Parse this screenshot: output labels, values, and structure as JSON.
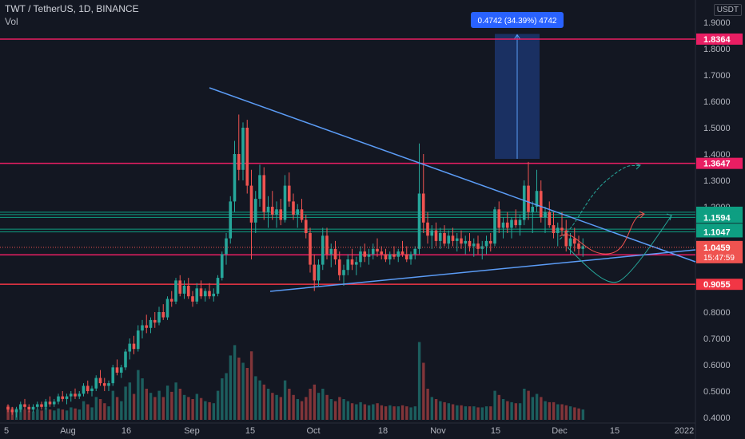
{
  "header": {
    "symbol_line": "TWT / TetherUS, 1D, BINANCE",
    "volume_label": "Vol",
    "currency": "USDT"
  },
  "measure_label": "0.4742 (34.39%) 4742",
  "colors": {
    "background": "#131722",
    "up": "#26a69a",
    "down": "#ef5350",
    "pink_level": "#e91e63",
    "red_level": "#f23645",
    "green_level": "#0e9f82",
    "trendline": "#5b9cf6",
    "measure_fill": "#1e3a78"
  },
  "chart_data": {
    "type": "candlestick",
    "y_ticks": [
      "0.4000",
      "0.5000",
      "0.6000",
      "0.7000",
      "0.8000",
      "0.9000",
      "1.0000",
      "1.1000",
      "1.2000",
      "1.3000",
      "1.4000",
      "1.5000",
      "1.6000",
      "1.7000",
      "1.8000",
      "1.9000"
    ],
    "x_ticks": [
      "5",
      "Aug",
      "16",
      "Sep",
      "15",
      "Oct",
      "18",
      "Nov",
      "15",
      "Dec",
      "15",
      "2022"
    ],
    "levels": [
      {
        "value": 1.8364,
        "label": "1.8364",
        "color": "#e91e63"
      },
      {
        "value": 1.3647,
        "label": "1.3647",
        "color": "#e91e63"
      },
      {
        "value": 1.179,
        "label": "1.1790",
        "color": "#0e9f82"
      },
      {
        "value": 1.17,
        "label": "1.1700",
        "color": "#0e9f82"
      },
      {
        "value": 1.1594,
        "label": "1.1594",
        "color": "#0e9f82"
      },
      {
        "value": 1.1146,
        "label": "1.1146",
        "color": "#0e9f82"
      },
      {
        "value": 1.1047,
        "label": "1.1047",
        "color": "#0e9f82"
      },
      {
        "value": 1.0175,
        "label": "1.0175",
        "color": "#e91e63"
      },
      {
        "value": 0.9055,
        "label": "0.9055",
        "color": "#f23645"
      }
    ],
    "last_price": {
      "value": 1.0459,
      "label": "1.0459",
      "countdown": "15:47:59"
    },
    "trendlines": [
      {
        "from": {
          "day": 66,
          "price": 1.65
        },
        "to": {
          "day": 210,
          "price": 1.01
        }
      },
      {
        "from": {
          "day": 86,
          "price": 0.875
        },
        "to": {
          "day": 210,
          "price": 1.04
        }
      }
    ],
    "measure": {
      "from_price": 1.3818,
      "to_price": 1.856,
      "start_day": 159,
      "end_day": 174
    },
    "candles": [
      [
        0.44,
        0.45,
        0.42,
        0.43,
        0.14
      ],
      [
        0.43,
        0.44,
        0.41,
        0.42,
        0.12
      ],
      [
        0.42,
        0.44,
        0.4,
        0.43,
        0.11
      ],
      [
        0.43,
        0.46,
        0.42,
        0.45,
        0.13
      ],
      [
        0.45,
        0.47,
        0.43,
        0.44,
        0.1
      ],
      [
        0.44,
        0.45,
        0.42,
        0.43,
        0.09
      ],
      [
        0.43,
        0.45,
        0.42,
        0.44,
        0.08
      ],
      [
        0.44,
        0.46,
        0.43,
        0.45,
        0.1
      ],
      [
        0.45,
        0.46,
        0.43,
        0.44,
        0.09
      ],
      [
        0.44,
        0.47,
        0.43,
        0.46,
        0.12
      ],
      [
        0.46,
        0.48,
        0.44,
        0.45,
        0.1
      ],
      [
        0.45,
        0.47,
        0.44,
        0.46,
        0.09
      ],
      [
        0.46,
        0.49,
        0.45,
        0.48,
        0.11
      ],
      [
        0.48,
        0.5,
        0.46,
        0.47,
        0.1
      ],
      [
        0.47,
        0.49,
        0.45,
        0.48,
        0.09
      ],
      [
        0.48,
        0.5,
        0.46,
        0.49,
        0.12
      ],
      [
        0.49,
        0.51,
        0.47,
        0.48,
        0.11
      ],
      [
        0.48,
        0.5,
        0.47,
        0.49,
        0.1
      ],
      [
        0.49,
        0.53,
        0.48,
        0.52,
        0.18
      ],
      [
        0.52,
        0.54,
        0.49,
        0.5,
        0.15
      ],
      [
        0.5,
        0.52,
        0.48,
        0.51,
        0.12
      ],
      [
        0.51,
        0.56,
        0.5,
        0.55,
        0.22
      ],
      [
        0.55,
        0.58,
        0.52,
        0.53,
        0.2
      ],
      [
        0.53,
        0.55,
        0.5,
        0.52,
        0.16
      ],
      [
        0.52,
        0.54,
        0.5,
        0.53,
        0.13
      ],
      [
        0.53,
        0.6,
        0.52,
        0.59,
        0.28
      ],
      [
        0.59,
        0.62,
        0.56,
        0.57,
        0.22
      ],
      [
        0.57,
        0.6,
        0.55,
        0.59,
        0.18
      ],
      [
        0.59,
        0.66,
        0.58,
        0.65,
        0.32
      ],
      [
        0.65,
        0.7,
        0.62,
        0.68,
        0.36
      ],
      [
        0.68,
        0.71,
        0.64,
        0.66,
        0.25
      ],
      [
        0.66,
        0.75,
        0.65,
        0.73,
        0.48
      ],
      [
        0.73,
        0.77,
        0.7,
        0.75,
        0.4
      ],
      [
        0.75,
        0.79,
        0.72,
        0.74,
        0.3
      ],
      [
        0.74,
        0.78,
        0.72,
        0.77,
        0.26
      ],
      [
        0.77,
        0.8,
        0.74,
        0.76,
        0.22
      ],
      [
        0.76,
        0.82,
        0.75,
        0.8,
        0.28
      ],
      [
        0.8,
        0.83,
        0.77,
        0.78,
        0.22
      ],
      [
        0.78,
        0.86,
        0.77,
        0.85,
        0.33
      ],
      [
        0.85,
        0.88,
        0.82,
        0.84,
        0.27
      ],
      [
        0.84,
        0.93,
        0.83,
        0.92,
        0.36
      ],
      [
        0.92,
        0.94,
        0.86,
        0.87,
        0.3
      ],
      [
        0.87,
        0.92,
        0.85,
        0.9,
        0.24
      ],
      [
        0.9,
        0.93,
        0.85,
        0.86,
        0.22
      ],
      [
        0.86,
        0.88,
        0.82,
        0.84,
        0.2
      ],
      [
        0.84,
        0.91,
        0.83,
        0.89,
        0.25
      ],
      [
        0.89,
        0.92,
        0.85,
        0.86,
        0.21
      ],
      [
        0.86,
        0.89,
        0.84,
        0.88,
        0.18
      ],
      [
        0.88,
        0.91,
        0.85,
        0.86,
        0.17
      ],
      [
        0.86,
        0.89,
        0.84,
        0.87,
        0.16
      ],
      [
        0.87,
        0.94,
        0.86,
        0.93,
        0.28
      ],
      [
        0.93,
        1.03,
        0.92,
        1.02,
        0.4
      ],
      [
        1.02,
        1.1,
        0.98,
        1.08,
        0.45
      ],
      [
        1.08,
        1.24,
        1.06,
        1.22,
        0.62
      ],
      [
        1.22,
        1.45,
        1.18,
        1.4,
        0.72
      ],
      [
        1.4,
        1.55,
        1.3,
        1.34,
        0.6
      ],
      [
        1.34,
        1.52,
        1.3,
        1.5,
        0.55
      ],
      [
        1.5,
        1.53,
        1.25,
        1.28,
        0.5
      ],
      [
        1.28,
        1.34,
        1.0,
        1.14,
        0.66
      ],
      [
        1.14,
        1.26,
        1.1,
        1.23,
        0.42
      ],
      [
        1.23,
        1.36,
        1.2,
        1.32,
        0.38
      ],
      [
        1.32,
        1.35,
        1.15,
        1.18,
        0.34
      ],
      [
        1.18,
        1.24,
        1.12,
        1.2,
        0.3
      ],
      [
        1.2,
        1.26,
        1.15,
        1.17,
        0.26
      ],
      [
        1.17,
        1.22,
        1.12,
        1.19,
        0.24
      ],
      [
        1.19,
        1.23,
        1.13,
        1.15,
        0.22
      ],
      [
        1.15,
        1.32,
        1.14,
        1.28,
        0.38
      ],
      [
        1.28,
        1.33,
        1.2,
        1.22,
        0.3
      ],
      [
        1.22,
        1.25,
        1.15,
        1.17,
        0.24
      ],
      [
        1.17,
        1.21,
        1.12,
        1.19,
        0.2
      ],
      [
        1.19,
        1.23,
        1.14,
        1.15,
        0.18
      ],
      [
        1.15,
        1.17,
        1.08,
        1.1,
        0.22
      ],
      [
        1.1,
        1.12,
        0.95,
        0.98,
        0.3
      ],
      [
        0.98,
        1.02,
        0.88,
        0.92,
        0.34
      ],
      [
        0.92,
        1.0,
        0.9,
        0.98,
        0.26
      ],
      [
        0.98,
        1.12,
        0.96,
        1.09,
        0.3
      ],
      [
        1.09,
        1.12,
        1.0,
        1.02,
        0.24
      ],
      [
        1.02,
        1.06,
        0.97,
        1.04,
        0.2
      ],
      [
        1.04,
        1.07,
        0.98,
        1.0,
        0.18
      ],
      [
        1.0,
        1.03,
        0.92,
        0.94,
        0.22
      ],
      [
        0.94,
        0.98,
        0.9,
        0.96,
        0.2
      ],
      [
        0.96,
        1.02,
        0.94,
        1.0,
        0.18
      ],
      [
        1.0,
        1.04,
        0.96,
        0.98,
        0.16
      ],
      [
        0.98,
        1.01,
        0.94,
        0.99,
        0.15
      ],
      [
        0.99,
        1.05,
        0.97,
        1.03,
        0.17
      ],
      [
        1.03,
        1.06,
        0.99,
        1.01,
        0.15
      ],
      [
        1.01,
        1.04,
        0.98,
        1.02,
        0.14
      ],
      [
        1.02,
        1.06,
        1.0,
        1.04,
        0.15
      ],
      [
        1.04,
        1.08,
        1.01,
        1.03,
        0.16
      ],
      [
        1.03,
        1.05,
        1.0,
        1.02,
        0.14
      ],
      [
        1.02,
        1.04,
        0.99,
        1.0,
        0.13
      ],
      [
        1.0,
        1.03,
        0.98,
        1.02,
        0.14
      ],
      [
        1.02,
        1.05,
        1.0,
        1.01,
        0.13
      ],
      [
        1.01,
        1.04,
        0.99,
        1.03,
        0.13
      ],
      [
        1.03,
        1.07,
        1.01,
        1.02,
        0.14
      ],
      [
        1.02,
        1.05,
        0.99,
        1.0,
        0.13
      ],
      [
        1.0,
        1.03,
        0.98,
        1.02,
        0.12
      ],
      [
        1.02,
        1.05,
        1.0,
        1.04,
        0.13
      ],
      [
        1.04,
        1.44,
        1.02,
        1.25,
        0.75
      ],
      [
        1.25,
        1.4,
        1.1,
        1.14,
        0.55
      ],
      [
        1.14,
        1.18,
        1.06,
        1.09,
        0.3
      ],
      [
        1.09,
        1.13,
        1.04,
        1.11,
        0.22
      ],
      [
        1.11,
        1.14,
        1.05,
        1.07,
        0.2
      ],
      [
        1.07,
        1.12,
        1.04,
        1.1,
        0.18
      ],
      [
        1.1,
        1.13,
        1.05,
        1.06,
        0.17
      ],
      [
        1.06,
        1.11,
        1.04,
        1.09,
        0.16
      ],
      [
        1.09,
        1.12,
        1.05,
        1.07,
        0.15
      ],
      [
        1.07,
        1.1,
        1.03,
        1.08,
        0.14
      ],
      [
        1.08,
        1.11,
        1.04,
        1.06,
        0.14
      ],
      [
        1.06,
        1.09,
        1.02,
        1.07,
        0.13
      ],
      [
        1.07,
        1.1,
        1.03,
        1.05,
        0.13
      ],
      [
        1.05,
        1.08,
        1.01,
        1.06,
        0.13
      ],
      [
        1.06,
        1.09,
        1.02,
        1.04,
        0.12
      ],
      [
        1.04,
        1.07,
        1.0,
        1.05,
        0.12
      ],
      [
        1.05,
        1.09,
        1.02,
        1.07,
        0.13
      ],
      [
        1.07,
        1.1,
        1.03,
        1.06,
        0.13
      ],
      [
        1.06,
        1.2,
        1.05,
        1.19,
        0.28
      ],
      [
        1.19,
        1.22,
        1.1,
        1.12,
        0.24
      ],
      [
        1.12,
        1.16,
        1.08,
        1.14,
        0.2
      ],
      [
        1.14,
        1.18,
        1.1,
        1.12,
        0.18
      ],
      [
        1.12,
        1.16,
        1.08,
        1.15,
        0.17
      ],
      [
        1.15,
        1.19,
        1.12,
        1.13,
        0.16
      ],
      [
        1.13,
        1.17,
        1.09,
        1.15,
        0.16
      ],
      [
        1.15,
        1.3,
        1.13,
        1.28,
        0.3
      ],
      [
        1.28,
        1.37,
        1.15,
        1.18,
        0.28
      ],
      [
        1.18,
        1.22,
        1.1,
        1.2,
        0.22
      ],
      [
        1.2,
        1.34,
        1.18,
        1.26,
        0.25
      ],
      [
        1.26,
        1.3,
        1.14,
        1.16,
        0.22
      ],
      [
        1.16,
        1.2,
        1.1,
        1.18,
        0.18
      ],
      [
        1.18,
        1.22,
        1.12,
        1.13,
        0.17
      ],
      [
        1.13,
        1.18,
        1.08,
        1.1,
        0.17
      ],
      [
        1.1,
        1.14,
        1.05,
        1.12,
        0.15
      ],
      [
        1.12,
        1.18,
        1.09,
        1.11,
        0.15
      ],
      [
        1.11,
        1.15,
        1.03,
        1.05,
        0.14
      ],
      [
        1.05,
        1.1,
        1.02,
        1.08,
        0.13
      ],
      [
        1.08,
        1.12,
        1.03,
        1.06,
        0.12
      ],
      [
        1.06,
        1.09,
        1.02,
        1.04,
        0.11
      ],
      [
        1.04,
        1.08,
        1.01,
        1.05,
        0.1
      ]
    ],
    "volume_note": "candles: [open, high, low, close, volume_millions]"
  }
}
